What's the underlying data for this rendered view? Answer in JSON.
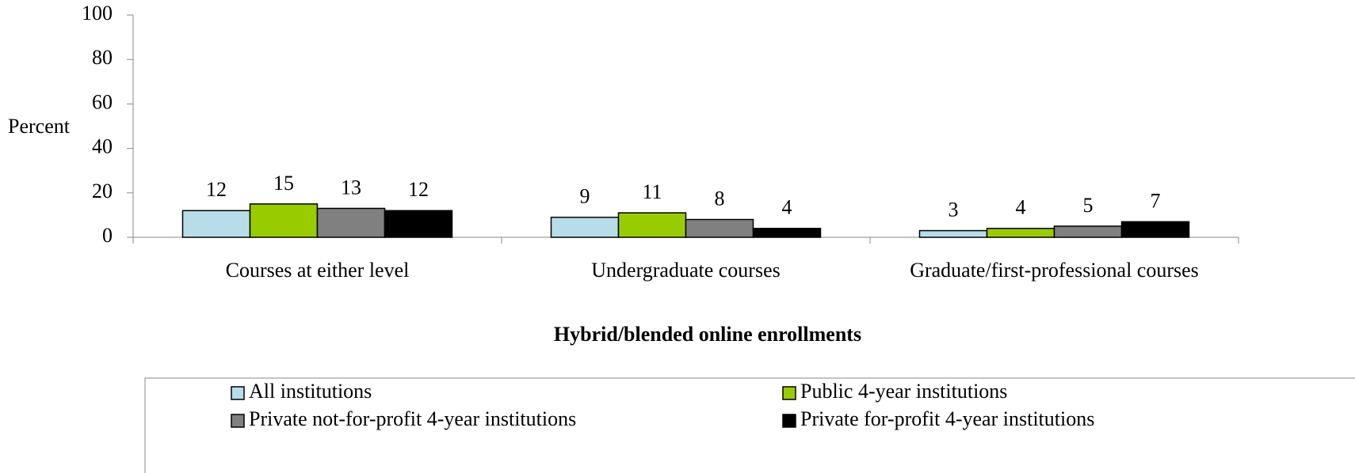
{
  "chart_data": {
    "type": "bar",
    "ylabel": "Percent",
    "xlabel": "Hybrid/blended online enrollments",
    "categories": [
      "Courses at either level",
      "Undergraduate courses",
      "Graduate/first-professional courses"
    ],
    "series": [
      {
        "name": "All institutions",
        "color": "#b7dde8",
        "values": [
          12,
          9,
          3
        ]
      },
      {
        "name": "Public 4-year institutions",
        "color": "#99cc00",
        "values": [
          15,
          11,
          4
        ]
      },
      {
        "name": "Private not-for-profit 4-year institutions",
        "color": "#808080",
        "values": [
          13,
          8,
          5
        ]
      },
      {
        "name": "Private for-profit 4-year institutions",
        "color": "#000000",
        "values": [
          12,
          4,
          7
        ]
      }
    ],
    "ylim": [
      0,
      100
    ],
    "yticks": [
      0,
      20,
      40,
      60,
      80,
      100
    ],
    "legend": "bottom"
  }
}
